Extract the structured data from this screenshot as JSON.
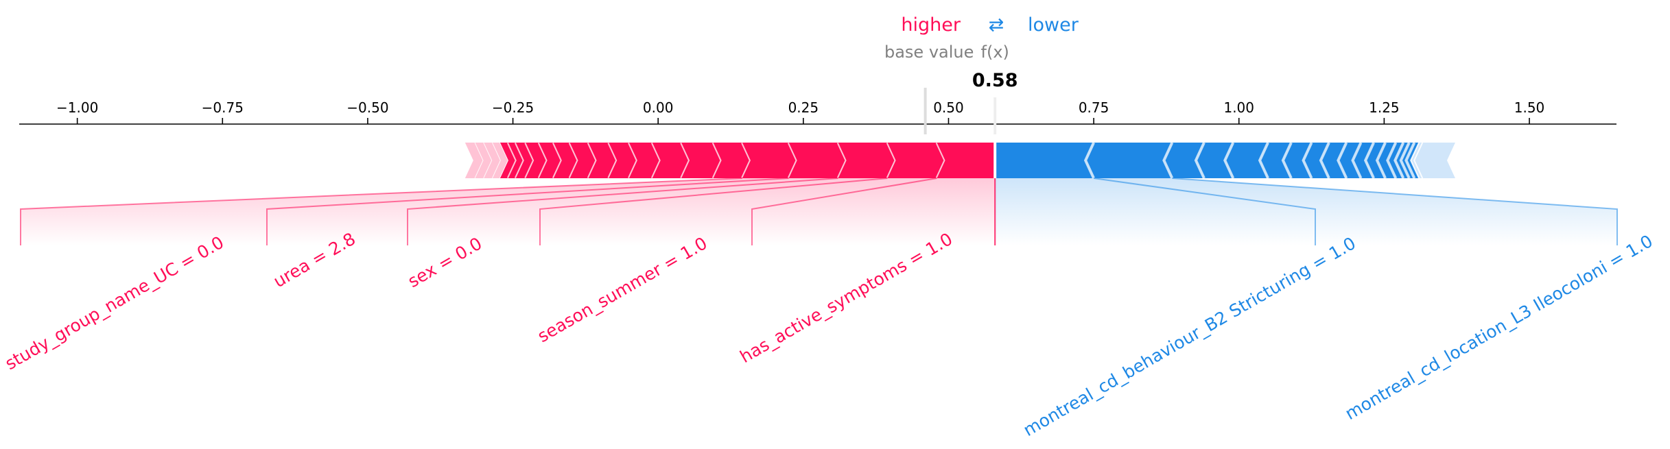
{
  "chart_data": {
    "type": "force",
    "legend": {
      "higher": "higher",
      "arrow": "⇄",
      "lower": "lower"
    },
    "base_value_label": "base value",
    "fx_label": "f(x)",
    "output_value": 0.58,
    "output_value_label": "0.58",
    "base_value": 0.46,
    "xlim": [
      -1.1,
      1.65
    ],
    "ticks": [
      {
        "value": -1.0,
        "label": "−1.00"
      },
      {
        "value": -0.75,
        "label": "−0.75"
      },
      {
        "value": -0.5,
        "label": "−0.50"
      },
      {
        "value": -0.25,
        "label": "−0.25"
      },
      {
        "value": 0.0,
        "label": "0.00"
      },
      {
        "value": 0.25,
        "label": "0.25"
      },
      {
        "value": 0.5,
        "label": "0.50"
      },
      {
        "value": 0.75,
        "label": "0.75"
      },
      {
        "value": 1.0,
        "label": "1.00"
      },
      {
        "value": 1.25,
        "label": "1.25"
      },
      {
        "value": 1.5,
        "label": "1.50"
      }
    ],
    "positive_bounds": [
      -0.33,
      -0.315,
      -0.3,
      -0.285,
      -0.272,
      -0.258,
      -0.245,
      -0.228,
      -0.205,
      -0.18,
      -0.152,
      -0.12,
      -0.085,
      -0.05,
      -0.01,
      0.04,
      0.095,
      0.145,
      0.225,
      0.31,
      0.395,
      0.48,
      0.58
    ],
    "negative_bounds": [
      0.58,
      0.75,
      0.885,
      0.94,
      0.99,
      1.05,
      1.09,
      1.125,
      1.155,
      1.185,
      1.21,
      1.232,
      1.252,
      1.27,
      1.283,
      1.293,
      1.302,
      1.31,
      1.316,
      1.37
    ],
    "positive_faded_before": -0.27,
    "negative_faded_after": 1.31,
    "positive_features": [
      {
        "label": "has_active_symptoms = 1.0",
        "start": 0.48,
        "end": 0.58
      },
      {
        "label": "season_summer = 1.0",
        "start": 0.395,
        "end": 0.48
      },
      {
        "label": "sex = 0.0",
        "start": 0.31,
        "end": 0.395
      },
      {
        "label": "urea = 2.8",
        "start": 0.225,
        "end": 0.31
      },
      {
        "label": "study_group_name_UC = 0.0",
        "start": 0.145,
        "end": 0.225
      }
    ],
    "negative_features": [
      {
        "label": "montreal_cd_behaviour_B2 Stricturing = 1.0",
        "start": 0.58,
        "end": 0.75
      },
      {
        "label": "montreal_cd_location_L3 Ileocoloni = 1.0",
        "start": 0.75,
        "end": 0.885
      }
    ],
    "colors": {
      "positive": "#ff0d57",
      "positive_light": "#ffc3d5",
      "negative": "#1e88e5",
      "negative_light": "#d1e6fa",
      "text_gray": "#808080",
      "axis": "#000000"
    }
  }
}
